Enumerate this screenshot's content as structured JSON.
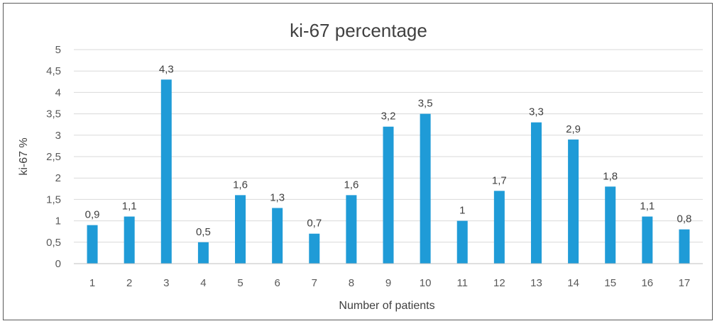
{
  "chart_data": {
    "type": "bar",
    "title": "ki-67 percentage",
    "xlabel": "Number of patients",
    "ylabel": "ki-67 %",
    "categories": [
      "1",
      "2",
      "3",
      "4",
      "5",
      "6",
      "7",
      "8",
      "9",
      "10",
      "11",
      "12",
      "13",
      "14",
      "15",
      "16",
      "17"
    ],
    "values": [
      0.9,
      1.1,
      4.3,
      0.5,
      1.6,
      1.3,
      0.7,
      1.6,
      3.2,
      3.5,
      1,
      1.7,
      3.3,
      2.9,
      1.8,
      1.1,
      0.8
    ],
    "data_labels": [
      "0,9",
      "1,1",
      "4,3",
      "0,5",
      "1,6",
      "1,3",
      "0,7",
      "1,6",
      "3,2",
      "3,5",
      "1",
      "1,7",
      "3,3",
      "2,9",
      "1,8",
      "1,1",
      "0,8"
    ],
    "yticks": [
      0,
      0.5,
      1,
      1.5,
      2,
      2.5,
      3,
      3.5,
      4,
      4.5,
      5
    ],
    "ytick_labels": [
      "0",
      "0,5",
      "1",
      "1,5",
      "2",
      "2,5",
      "3",
      "3,5",
      "4",
      "4,5",
      "5"
    ],
    "ylim": [
      0,
      5
    ],
    "grid": true,
    "bar_color": "#1f9bd7"
  }
}
